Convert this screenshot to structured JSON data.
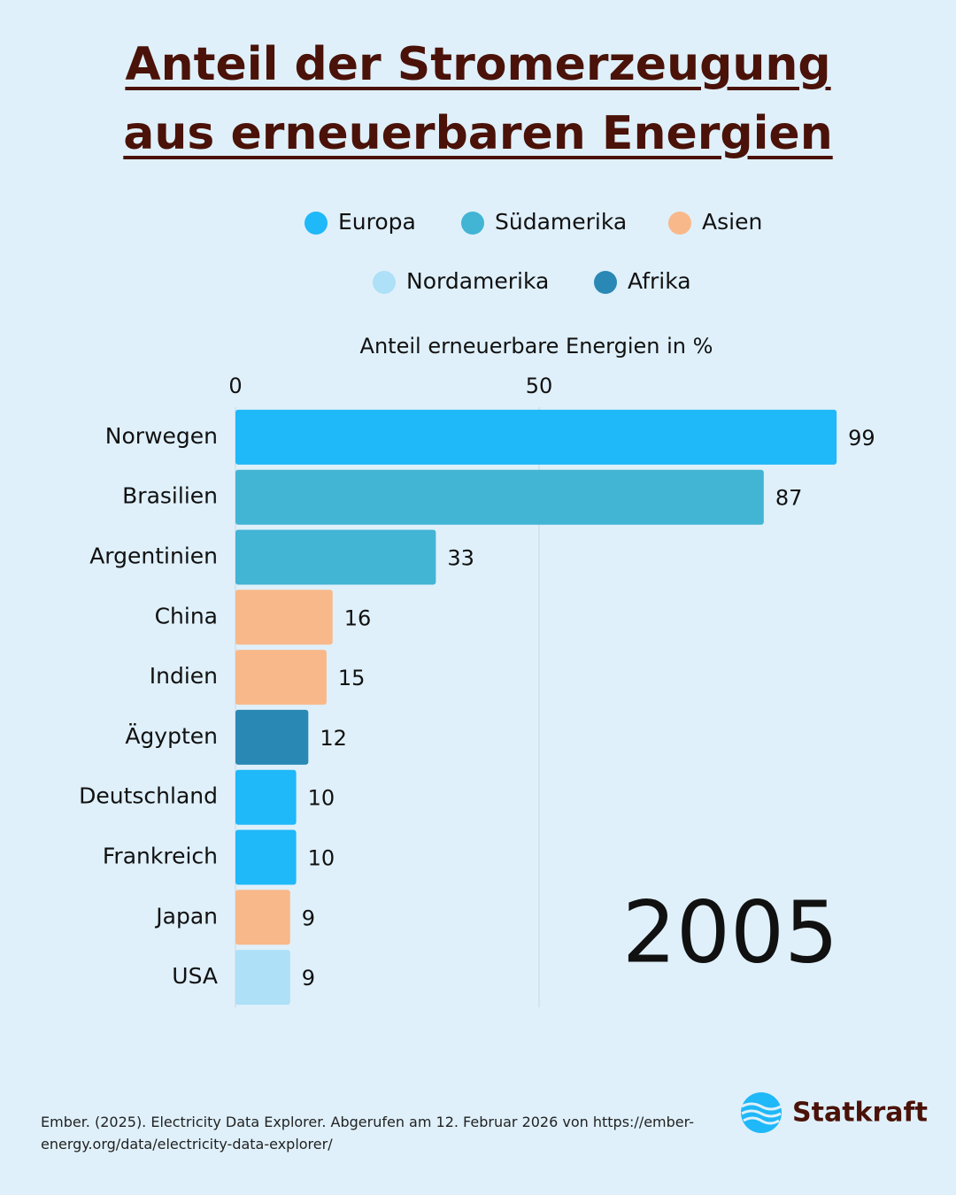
{
  "chart_data": {
    "type": "bar",
    "orientation": "horizontal",
    "title": "Anteil der Stromerzeugung aus erneuerbaren Energien",
    "x_label": "Anteil erneuerbare Energien in %",
    "annotation": "2005",
    "categories": [
      "Norwegen",
      "Brasilien",
      "Argentinien",
      "China",
      "Indien",
      "Ägypten",
      "Deutschland",
      "Frankreich",
      "Japan",
      "USA"
    ],
    "series": [
      {
        "name": "Europa",
        "color": "#1fb8f8",
        "values": [
          99,
          null,
          null,
          null,
          null,
          null,
          10,
          10,
          null,
          null
        ]
      },
      {
        "name": "Südamerika",
        "color": "#42b4d4",
        "values": [
          null,
          87,
          33,
          null,
          null,
          null,
          null,
          null,
          null,
          null
        ]
      },
      {
        "name": "Asien",
        "color": "#f9b88a",
        "values": [
          null,
          null,
          null,
          16,
          15,
          null,
          null,
          null,
          9,
          null
        ]
      },
      {
        "name": "Nordamerika",
        "color": "#aee0f7",
        "values": [
          null,
          null,
          null,
          null,
          null,
          null,
          null,
          null,
          null,
          9
        ]
      },
      {
        "name": "Afrika",
        "color": "#2a88b5",
        "values": [
          null,
          null,
          null,
          null,
          null,
          12,
          null,
          null,
          null,
          null
        ]
      }
    ],
    "xlim": [
      0,
      100
    ],
    "xticks": [
      0,
      50
    ],
    "grid": true,
    "source": "Ember. (2025). Electricity Data Explorer. Abgerufen am 12. Februar 2026 von https://ember-energy.org/data/electricity-data-explorer/",
    "logo": "Statkraft"
  }
}
